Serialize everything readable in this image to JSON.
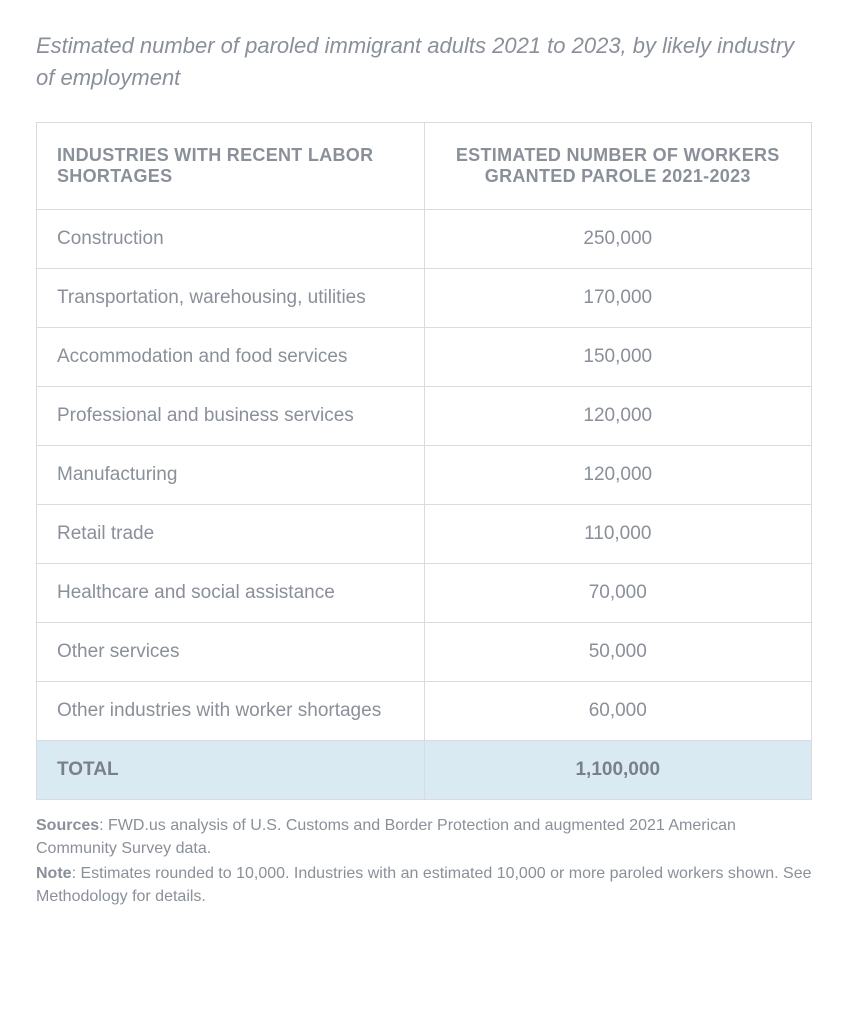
{
  "title": "Estimated number of paroled immigrant adults 2021 to 2023, by likely industry of employment",
  "table": {
    "columns": [
      "INDUSTRIES WITH RECENT LABOR SHORTAGES",
      "ESTIMATED NUMBER OF WORKERS GRANTED PAROLE 2021-2023"
    ],
    "rows": [
      {
        "industry": "Construction",
        "value": "250,000"
      },
      {
        "industry": "Transportation, warehousing, utilities",
        "value": "170,000"
      },
      {
        "industry": "Accommodation and food services",
        "value": "150,000"
      },
      {
        "industry": "Professional and business services",
        "value": "120,000"
      },
      {
        "industry": "Manufacturing",
        "value": "120,000"
      },
      {
        "industry": "Retail trade",
        "value": "110,000"
      },
      {
        "industry": "Healthcare and social assistance",
        "value": "70,000"
      },
      {
        "industry": "Other services",
        "value": "50,000"
      },
      {
        "industry": "Other industries with worker shortages",
        "value": "60,000"
      }
    ],
    "total": {
      "label": "TOTAL",
      "value": "1,100,000"
    },
    "colors": {
      "border": "#d8dce0",
      "text": "#8a9099",
      "total_row_bg": "#d9eaf2",
      "background": "#ffffff"
    },
    "font_sizes": {
      "title": 22,
      "header": 18,
      "cell": 19,
      "footer": 16
    }
  },
  "footer": {
    "sources_label": "Sources",
    "sources_text": ": FWD.us analysis of U.S. Customs and Border Protection and augmented 2021 American Community Survey data.",
    "note_label": "Note",
    "note_text": ": Estimates rounded to 10,000. Industries with an estimated 10,000 or more paroled workers shown. See Methodology for details."
  }
}
